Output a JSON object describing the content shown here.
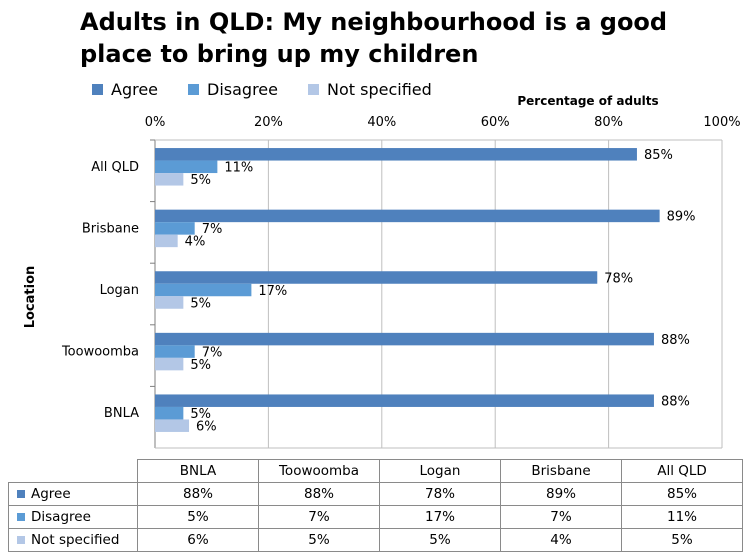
{
  "chart_data": {
    "type": "bar",
    "orientation": "horizontal",
    "title": "Adults in QLD: My neighbourhood is a good place to bring up my children",
    "xlabel": "Percentage of adults",
    "ylabel": "Location",
    "xlim": [
      0,
      100
    ],
    "xticks": [
      "0%",
      "20%",
      "40%",
      "60%",
      "80%",
      "100%"
    ],
    "categories": [
      "All QLD",
      "Brisbane",
      "Logan",
      "Toowoomba",
      "BNLA"
    ],
    "series": [
      {
        "name": "Agree",
        "color": "#4f81bd",
        "values": [
          85,
          89,
          78,
          88,
          88
        ]
      },
      {
        "name": "Disagree",
        "color": "#5b9bd5",
        "values": [
          11,
          7,
          17,
          7,
          5
        ]
      },
      {
        "name": "Not specified",
        "color": "#b3c7e6",
        "values": [
          5,
          4,
          5,
          5,
          6
        ]
      }
    ],
    "data_labels": [
      [
        "85%",
        "11%",
        "5%"
      ],
      [
        "89%",
        "7%",
        "4%"
      ],
      [
        "78%",
        "17%",
        "5%"
      ],
      [
        "88%",
        "7%",
        "5%"
      ],
      [
        "88%",
        "5%",
        "6%"
      ]
    ],
    "legend_position": "top-left",
    "grid": true
  },
  "table": {
    "columns": [
      "BNLA",
      "Toowoomba",
      "Logan",
      "Brisbane",
      "All QLD"
    ],
    "rows": [
      {
        "label": "Agree",
        "cells": [
          "88%",
          "88%",
          "78%",
          "89%",
          "85%"
        ]
      },
      {
        "label": "Disagree",
        "cells": [
          "5%",
          "7%",
          "17%",
          "7%",
          "11%"
        ]
      },
      {
        "label": "Not specified",
        "cells": [
          "6%",
          "5%",
          "5%",
          "4%",
          "5%"
        ]
      }
    ]
  }
}
